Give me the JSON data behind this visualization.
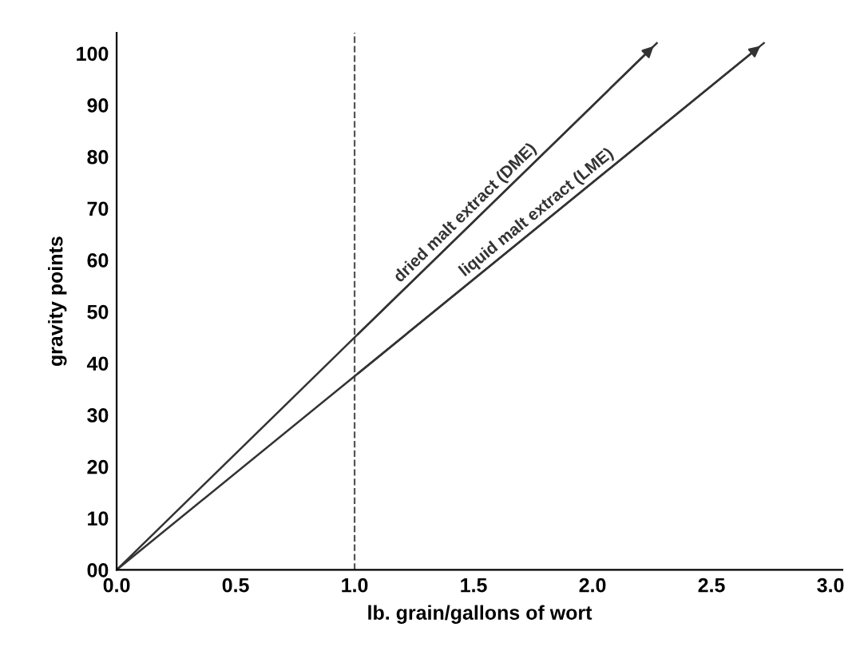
{
  "chart_data": {
    "type": "line",
    "xlabel": "lb. grain/gallons of wort",
    "ylabel": "gravity points",
    "series": [
      {
        "name": "dried malt extract (DME)",
        "color": "#333333",
        "x": [
          0,
          1,
          2.27
        ],
        "values": [
          0,
          45,
          102
        ]
      },
      {
        "name": "liquid malt extract (LME)",
        "color": "#333333",
        "x": [
          0,
          1,
          2.72
        ],
        "values": [
          0,
          37.5,
          102
        ]
      }
    ],
    "xlim": [
      0,
      3.05
    ],
    "ylim": [
      0,
      104
    ],
    "xticks": [
      {
        "value": 0,
        "label": "0.0"
      },
      0.5,
      {
        "value": 1,
        "label": "1.0"
      },
      1.5,
      {
        "value": 2,
        "label": "2.0"
      },
      2.5,
      {
        "value": 3,
        "label": "3.0"
      }
    ],
    "yticks": [
      {
        "value": 0,
        "label": "00"
      },
      10,
      20,
      30,
      40,
      50,
      60,
      70,
      80,
      90,
      100
    ],
    "ref_lines": [
      {
        "axis": "x",
        "value": 1,
        "color": "#555555",
        "line_style": "dashed"
      }
    ],
    "grid": false,
    "legend": false,
    "marker": "none",
    "line_style": "solid"
  }
}
